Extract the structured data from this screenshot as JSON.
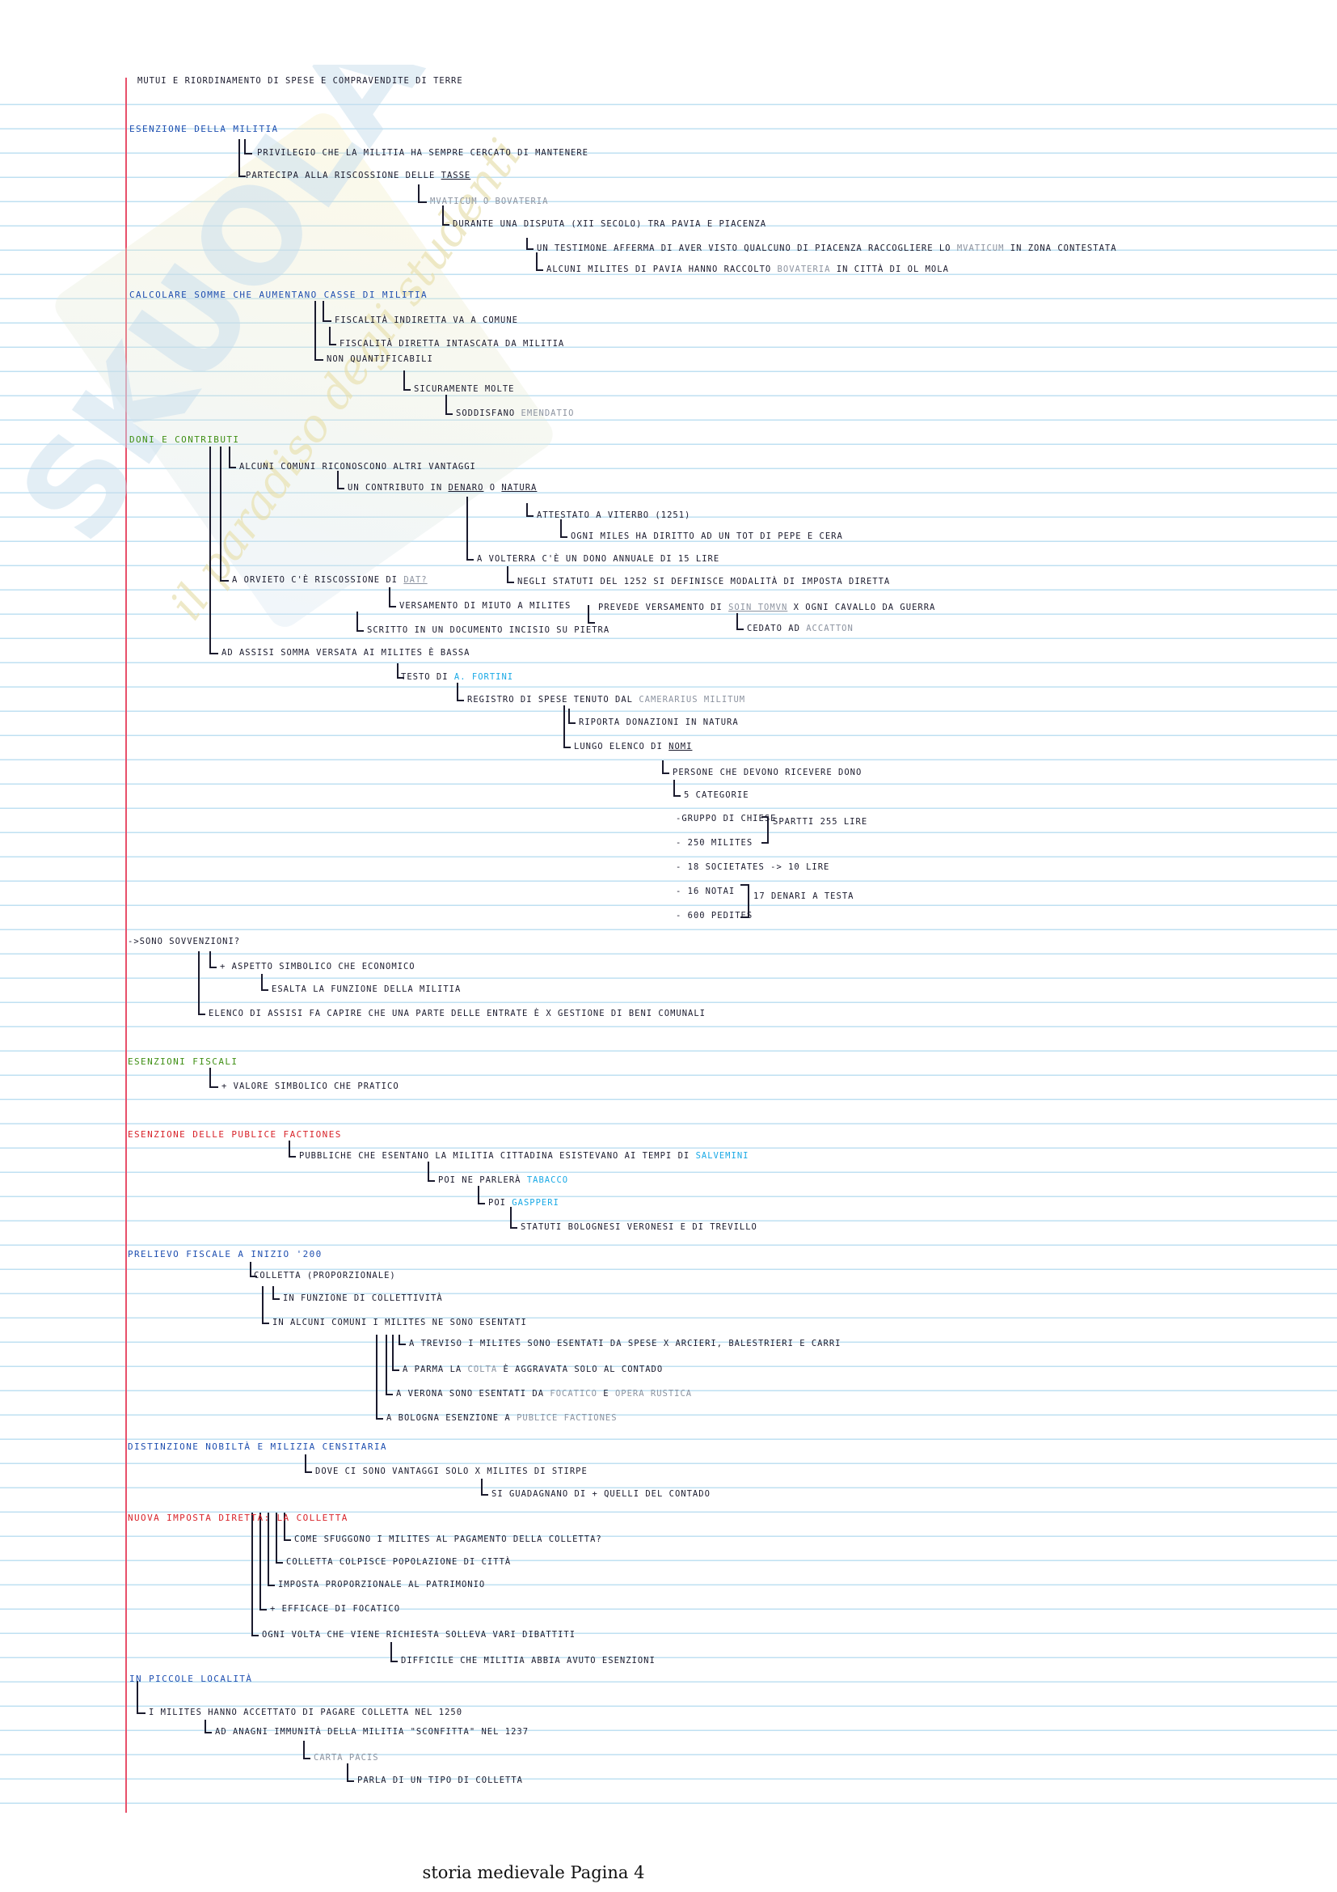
{
  "page_footer": "storia medievale Pagina 4",
  "watermark": {
    "brand": "SKUOLA.net",
    "tagline": "il paradiso degli studenti"
  },
  "colors": {
    "ink": "#1b1b2e",
    "heading_blue": "#1f4fb0",
    "heading_green": "#3f8f14",
    "heading_red": "#d8232a",
    "gray_ink": "#8c93a0",
    "cyan": "#19a9e6",
    "rule": "#bfe0f2",
    "margin": "#e8506a"
  },
  "notes": {
    "top_cut": "Mutui e riordinamento di spese e compravendite di terre",
    "s1": {
      "title": "Esenzione della militia",
      "l1": "privilegio che la militia ha sempre cercato di mantenere",
      "l2": "partecipa alla riscossione delle",
      "l2_tasse": "tasse",
      "l3": "Mvaticum o bovateria",
      "l4": "durante una disputa (xii secolo) tra pavia e piacenza",
      "l5a": "un testimone afferma di aver visto qualcuno di piacenza raccogliere lo",
      "l5b": "mvaticum",
      "l5c": "in zona contestata",
      "l6a": "alcuni milites di pavia hanno raccolto",
      "l6b": "bovateria",
      "l6c": "in città di ol mola"
    },
    "s2": {
      "title": "Calcolare somme che aumentano casse di militia",
      "l1": "fiscalità indiretta va a comune",
      "l2": "fiscalità diretta intascata da militia",
      "l3": "non quantificabili",
      "l4": "sicuramente molte",
      "l5a": "soddisfano",
      "l5b": "Emendatio"
    },
    "s3": {
      "title": "Doni e contributi",
      "l1": "alcuni comuni riconoscono altri vantaggi",
      "l2a": "un contributo in",
      "l2b": "denaro",
      "l2c": "o",
      "l2d": "natura",
      "l3": "attestato a viterbo (1251)",
      "l4": "ogni miles ha diritto ad un tot di pepe e cera",
      "l5": "a volterra c'è un dono annuale di 15 lire",
      "l6": "negli statuti del 1252 si definisce modalità di imposta diretta",
      "l7a": "a orvieto c'è riscossione di",
      "l7b": "dat?",
      "l8": "versamento di miuto a milites",
      "l9a": "prevede versamento di",
      "l9b": "soin tomvn",
      "l9c": "x ogni cavallo da guerra",
      "l10a": "cedato ad",
      "l10b": "Accatton",
      "l11": "scritto in un documento incisio su pietra",
      "l12": "ad assisi somma versata ai milites è bassa",
      "l13a": "testo di",
      "l13b": "A. Fortini",
      "l14a": "registro di spese tenuto dal",
      "l14b": "camerarius militum",
      "l15": "riporta donazioni in natura",
      "l16a": "lungo elenco di",
      "l16b": "nomi",
      "l17": "persone che devono ricevere dono",
      "l18": "5 categorie",
      "c1": "-gruppo di chiese",
      "c2": "- 250 milites",
      "c3": "- 18 societates -> 10 lire",
      "c4": "- 16 notai",
      "c5": "- 600 pedites",
      "c_note1": "spartti 255 lire",
      "c_note2": "17 denari a testa"
    },
    "s4": {
      "title": "->sono sovvenzioni?",
      "l1": "+ aspetto simbolico che economico",
      "l2": "esalta la funzione della militia",
      "l3": "elenco di assisi fa capire che una parte delle entrate è x gestione di beni comunali"
    },
    "s5": {
      "title": "Esenzioni fiscali",
      "l1": "+ valore simbolico che pratico"
    },
    "s6": {
      "title": "Esenzione delle publice factiones",
      "l1a": "pubbliche che esentano la militia cittadina esistevano ai tempi di",
      "l1b": "Salvemini",
      "l2a": "poi ne parlerà",
      "l2b": "Tabacco",
      "l3a": "poi",
      "l3b": "Gaspperi",
      "l4": "statuti bolognesi veronesi e di trevillo"
    },
    "s7": {
      "title": "Prelievo fiscale a inizio '200",
      "l1": "colletta (proporzionale)",
      "l2": "in funzione di collettività",
      "l3": "in alcuni comuni i milites ne sono esentati",
      "l4": "a treviso i milites sono esentati da spese x arcieri, balestrieri e carri",
      "l5a": "a parma la",
      "l5b": "colta",
      "l5c": "è aggravata solo al contado",
      "l6a": "a verona sono esentati da",
      "l6b": "Focatico",
      "l6c": "e",
      "l6d": "opera rustica",
      "l7a": "a bologna esenzione a",
      "l7b": "publice factiones"
    },
    "s8": {
      "title": "Distinzione nobiltà e milizia censitaria",
      "l1": "dove ci sono vantaggi solo x milites di stirpe",
      "l2": "si guadagnano di + quelli del contado"
    },
    "s9": {
      "title": "Nuova imposta diretta: la colletta",
      "l1": "come sfuggono i milites al pagamento della colletta?",
      "l2": "colletta colpisce popolazione di città",
      "l3": "imposta proporzionale al patrimonio",
      "l4": "+ efficace di focatico",
      "l5": "ogni volta che viene richiesta solleva vari dibattiti",
      "l6": "difficile che militia abbia avuto esenzioni"
    },
    "s10": {
      "title": "in piccole località",
      "l1": "i milites hanno accettato di pagare colletta nel 1250",
      "l2": "ad anagni immunità della militia \"sconfitta\" nel 1237",
      "l3": "carta pacis",
      "l4": "parla di un tipo di colletta"
    }
  }
}
